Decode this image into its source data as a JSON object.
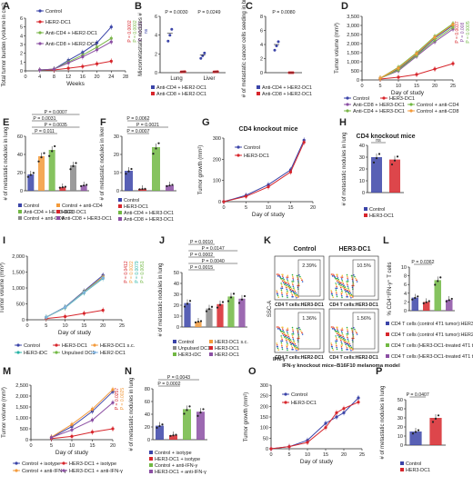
{
  "colors": {
    "control": "#3b44a8",
    "her2dc1": "#d7262c",
    "antiCD4": "#7ab648",
    "antiCD8": "#8b4fa3",
    "her3dc1": "#d7262c",
    "aqua": "#27b3a6",
    "orange": "#f39a3a",
    "gray": "#8a8a8a",
    "green": "#71b843",
    "lightblue": "#7fb2e0"
  },
  "chart_data": [
    {
      "type": "line",
      "panel": "A",
      "x": [
        4,
        8,
        12,
        16,
        20,
        24
      ],
      "series": [
        {
          "name": "Control",
          "values": [
            0.1,
            0.2,
            1.2,
            2.1,
            3.2,
            5.0
          ]
        },
        {
          "name": "HER2-DC1",
          "values": [
            0.1,
            0.1,
            0.3,
            0.5,
            0.8,
            1.1
          ]
        },
        {
          "name": "Anti-CD4 + HER2-DC1",
          "values": [
            0.1,
            0.2,
            1.0,
            1.8,
            2.7,
            3.7
          ]
        },
        {
          "name": "Anti-CD8 + HER2-DC1",
          "values": [
            0.1,
            0.2,
            0.9,
            1.6,
            2.4,
            3.3
          ]
        }
      ],
      "xlabel": "Weeks",
      "ylabel": "Total tumor burden (volume in cm³)",
      "xticks": [
        "0",
        "4",
        "8",
        "12",
        "16",
        "20",
        "24",
        "28"
      ],
      "yticks": [
        "0",
        "1",
        "2",
        "3",
        "4",
        "5",
        "6"
      ],
      "ylim": [
        0,
        6
      ],
      "pvalues": [
        "P = 0.0002",
        "P = 0.0002",
        "P = 0.133",
        "ns"
      ]
    },
    {
      "type": "scatter",
      "panel": "B",
      "categories": [
        "Lung",
        "Liver"
      ],
      "series": [
        {
          "name": "Anti-CD4 + HER2-DC1",
          "values": [
            4.2,
            1.9
          ]
        },
        {
          "name": "Anti-CD8 + HER2-DC1",
          "values": [
            0.1,
            0.1
          ]
        }
      ],
      "ylabel": "Micrometastatic nodules #",
      "yticks": [
        "0",
        "2",
        "4",
        "6"
      ],
      "ylim": [
        0,
        6
      ],
      "pvalues": [
        "P = 0.0030",
        "P = 0.0249"
      ]
    },
    {
      "type": "scatter",
      "panel": "C",
      "series": [
        {
          "name": "Anti-CD4 + HER2-DC1",
          "values": [
            4.0
          ]
        },
        {
          "name": "Anti-CD8 + HER2-DC1",
          "values": [
            0.0
          ]
        }
      ],
      "ylabel": "# of metastatic cancer cells seeding in brain",
      "yticks": [
        "0",
        "2",
        "4",
        "6",
        "8"
      ],
      "ylim": [
        0,
        8
      ],
      "pvalues": [
        "P = 0.0080"
      ]
    },
    {
      "type": "line",
      "panel": "D",
      "x": [
        5,
        10,
        15,
        20,
        25
      ],
      "series": [
        {
          "name": "Control",
          "values": [
            100,
            600,
            1400,
            2300,
            3000
          ]
        },
        {
          "name": "HER3-DC1",
          "values": [
            50,
            150,
            300,
            600,
            900
          ]
        },
        {
          "name": "Anti-CD8 + HER3-DC1",
          "values": [
            100,
            500,
            1300,
            2100,
            2800
          ]
        },
        {
          "name": "Control + anti-CD4",
          "values": [
            100,
            700,
            1500,
            2400,
            3100
          ]
        },
        {
          "name": "Anti-CD4 + HER3-DC1",
          "values": [
            90,
            550,
            1350,
            2200,
            2900
          ]
        },
        {
          "name": "Control + anti-CD8",
          "values": [
            100,
            650,
            1450,
            2350,
            3050
          ]
        }
      ],
      "xlabel": "Day of study",
      "ylabel": "Tumor volume (mm³)",
      "xticks": [
        "0",
        "5",
        "10",
        "15",
        "20",
        "25"
      ],
      "yticks": [
        "0",
        "500",
        "1,000",
        "1,500",
        "2,000",
        "2,500",
        "3,000",
        "3,500"
      ],
      "ylim": [
        0,
        3500
      ],
      "pvalues": [
        "P = 0.0037",
        "P = 0.008",
        "P = 0.0005"
      ]
    },
    {
      "type": "bar",
      "panel": "E",
      "categories": [
        "Control",
        "Control + anti-CD4",
        "Anti-CD4 + HER3-DC1",
        "HER3-DC1",
        "Control + anti-CD8",
        "Anti-CD8 + HER3-DC1"
      ],
      "values": [
        18,
        38,
        45,
        4,
        28,
        6
      ],
      "ylabel": "# of metastatic nodules in lung",
      "yticks": [
        "0",
        "20",
        "40",
        "60"
      ],
      "ylim": [
        0,
        60
      ],
      "pvalues": [
        "P = 0.011",
        "P = 0.0035",
        "P = 0.0031",
        "P = 0.0007"
      ]
    },
    {
      "type": "bar",
      "panel": "F",
      "categories": [
        "Control",
        "HER3-DC1",
        "Anti-CD4 + HER3-DC1",
        "Anti-CD8 + HER3-DC1"
      ],
      "values": [
        11,
        1,
        24,
        3
      ],
      "ylabel": "# of metastatic nodules in liver",
      "yticks": [
        "0",
        "10",
        "20",
        "30"
      ],
      "ylim": [
        0,
        30
      ],
      "pvalues": [
        "P = 0.0007",
        "P = 0.0021",
        "P = 0.0062"
      ]
    },
    {
      "type": "line",
      "panel": "G",
      "x": [
        0,
        5,
        10,
        15,
        18
      ],
      "series": [
        {
          "name": "Control",
          "values": [
            0,
            30,
            80,
            150,
            290
          ]
        },
        {
          "name": "HER3-DC1",
          "values": [
            0,
            25,
            70,
            140,
            280
          ]
        }
      ],
      "title": "CD4 knockout mice",
      "xlabel": "Day of study",
      "ylabel": "Tumor growth (mm²)",
      "xticks": [
        "0",
        "5",
        "10",
        "15",
        "20"
      ],
      "yticks": [
        "0",
        "100",
        "200",
        "300"
      ],
      "ylim": [
        0,
        300
      ]
    },
    {
      "type": "bar",
      "panel": "H",
      "categories": [
        "Control",
        "HER3-DC1"
      ],
      "values": [
        30,
        28
      ],
      "title": "CD4 knockout mice",
      "ylabel": "# of metastatic nodules in lung",
      "yticks": [
        "0",
        "10",
        "20",
        "30",
        "40"
      ],
      "ylim": [
        0,
        40
      ],
      "pvalues": [
        "ns"
      ]
    },
    {
      "type": "line",
      "panel": "I",
      "x": [
        5,
        10,
        15,
        20
      ],
      "series": [
        {
          "name": "Control",
          "values": [
            80,
            400,
            900,
            1400
          ]
        },
        {
          "name": "HER3-DC1",
          "values": [
            40,
            100,
            200,
            300
          ]
        },
        {
          "name": "HER3-DC1 s.c.",
          "values": [
            80,
            380,
            880,
            1350
          ]
        },
        {
          "name": "HER3-iDC",
          "values": [
            80,
            380,
            850,
            1300
          ]
        },
        {
          "name": "Unpulsed DC1",
          "values": [
            80,
            390,
            870,
            1320
          ]
        },
        {
          "name": "HER2-DC1",
          "values": [
            80,
            390,
            860,
            1310
          ]
        }
      ],
      "xlabel": "Day of study",
      "ylabel": "Tumor volume (mm³)",
      "xticks": [
        "0",
        "5",
        "10",
        "15",
        "20",
        "25"
      ],
      "yticks": [
        "0",
        "500",
        "1,000",
        "1,500",
        "2,000"
      ],
      "ylim": [
        0,
        2000
      ],
      "pvalues": [
        "P = 0.0412",
        "P = 0.0022",
        "P = 0.0079",
        "P = 0.0051"
      ]
    },
    {
      "type": "bar",
      "panel": "J",
      "categories": [
        "Control",
        "HER3-DC1 s.c.",
        "Unpulsed DC1",
        "HER3-DC1",
        "HER3-iDC",
        "HER2-DC1"
      ],
      "values": [
        22,
        5,
        17,
        21,
        28,
        26
      ],
      "ylabel": "# of metastatic nodules in lung",
      "yticks": [
        "0",
        "10",
        "20",
        "30",
        "40",
        "50"
      ],
      "ylim": [
        0,
        50
      ],
      "pvalues": [
        "P = 0.0015",
        "P = 0.0040",
        "P = 0.0002",
        "P = 0.0147",
        "P = 0.0010"
      ]
    },
    {
      "type": "heatmap",
      "panel": "K",
      "title_left": "Control",
      "title_right": "HER3-DC1",
      "quadrants": [
        "2.39%",
        "10.5%",
        "1.36%",
        "1.56%"
      ],
      "xlabel": "CD4 T cells:HER3-DC1",
      "xlabel2": "CD4 T cells:HER2-DC1",
      "ylabel": "SSC-A",
      "footer": "IFN-γ",
      "caption": "IFN-γ knockout mice–B16F10 melanoma model"
    },
    {
      "type": "bar",
      "panel": "L",
      "categories": [
        "CD4 T cells (control 4T1 tumor):HER3-DC1 coculture",
        "CD4 T cells (control 4T1 tumor):HER2-DC1 coculture",
        "CD4 T cells (HER3-DC1-treated 4T1 tumor):HER3-DC1 coculture",
        "CD4 T cells (HER3-DC1-treated 4T1 tumor):HER2-DC1 coculture"
      ],
      "values": [
        3,
        2,
        7,
        2.5
      ],
      "ylabel": "% CD4⁺IFN-γ⁺ T cells",
      "yticks": [
        "0",
        "2",
        "4",
        "6",
        "8",
        "10"
      ],
      "ylim": [
        0,
        10
      ],
      "pvalues": [
        "P = 0.0362"
      ]
    },
    {
      "type": "line",
      "panel": "M",
      "x": [
        5,
        10,
        15,
        20
      ],
      "series": [
        {
          "name": "Control + isotype",
          "values": [
            100,
            600,
            1300,
            2200
          ]
        },
        {
          "name": "HER3-DC1 + isotype",
          "values": [
            50,
            150,
            350,
            500
          ]
        },
        {
          "name": "Control + anti-IFN-γ",
          "values": [
            120,
            700,
            1400,
            2300
          ]
        },
        {
          "name": "HER3-DC1 + anti-IFN-γ",
          "values": [
            100,
            450,
            900,
            1700
          ]
        }
      ],
      "xlabel": "Day of study",
      "ylabel": "Tumor volume (mm³)",
      "xticks": [
        "0",
        "5",
        "10",
        "15",
        "20"
      ],
      "yticks": [
        "0",
        "500",
        "1,000",
        "1,500",
        "2,000",
        "2,500"
      ],
      "ylim": [
        0,
        2500
      ],
      "pvalues": [
        "P = 0.0257",
        "P = 0.0025"
      ]
    },
    {
      "type": "bar",
      "panel": "N",
      "categories": [
        "Control + isotype",
        "HER3-DC1 + isotype",
        "Control + anti-IFN-γ",
        "HER3-DC1 + anti-IFN-γ"
      ],
      "values": [
        22,
        7,
        48,
        44
      ],
      "ylabel": "# of metastatic nodules in lung",
      "yticks": [
        "0",
        "20",
        "40",
        "60",
        "80"
      ],
      "ylim": [
        0,
        80
      ],
      "pvalues": [
        "P = 0.0002",
        "P = 0.0043"
      ]
    },
    {
      "type": "line",
      "panel": "O",
      "x": [
        0,
        5,
        10,
        15,
        18,
        20,
        24
      ],
      "series": [
        {
          "name": "Control",
          "values": [
            0,
            10,
            40,
            120,
            150,
            170,
            240
          ]
        },
        {
          "name": "HER3-DC1",
          "values": [
            0,
            10,
            30,
            100,
            170,
            190,
            220
          ]
        }
      ],
      "xlabel": "Day of study",
      "ylabel": "Tumor growth (mm²)",
      "xticks": [
        "0",
        "5",
        "10",
        "15",
        "20",
        "25"
      ],
      "yticks": [
        "0",
        "50",
        "100",
        "150",
        "200",
        "250",
        "300"
      ],
      "ylim": [
        0,
        300
      ]
    },
    {
      "type": "bar",
      "panel": "P",
      "categories": [
        "Control",
        "HER3-DC1"
      ],
      "values": [
        15,
        30
      ],
      "ylabel": "# of metastatic nodules in lung",
      "yticks": [
        "0",
        "10",
        "20",
        "30",
        "40",
        "50"
      ],
      "ylim": [
        0,
        50
      ],
      "pvalues": [
        "P = 0.0407"
      ]
    }
  ]
}
